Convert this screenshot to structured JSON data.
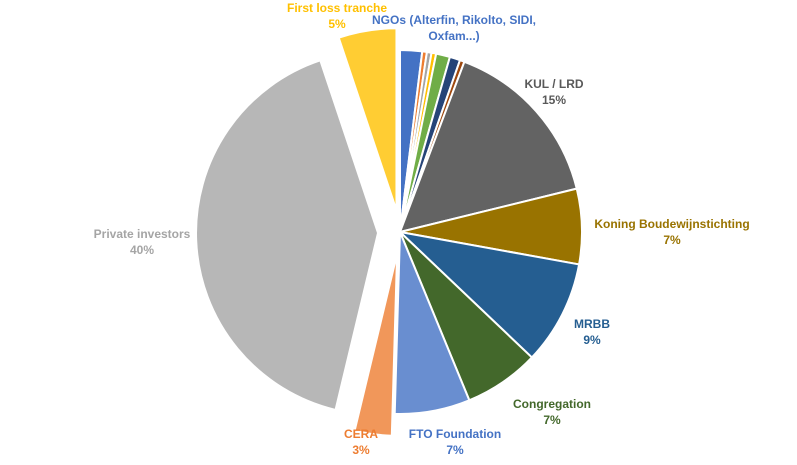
{
  "chart_data": {
    "type": "pie",
    "title": "",
    "start_angle_deg": 0,
    "slices": [
      {
        "name": "NGOs (Alterfin, Rikolto, SIDI, Oxfam...)",
        "value": 1.9,
        "color": "#4472c4",
        "label": [
          "NGOs (Alterfin, Rikolto, SIDI,",
          "Oxfam...)"
        ],
        "percent": "",
        "label_color": "#4472c4"
      },
      {
        "name": "",
        "value": 0.4,
        "color": "#ed7d31"
      },
      {
        "name": "",
        "value": 0.4,
        "color": "#a5a5a5"
      },
      {
        "name": "",
        "value": 0.4,
        "color": "#ffc000"
      },
      {
        "name": "",
        "value": 1.2,
        "color": "#70ad47"
      },
      {
        "name": "",
        "value": 0.9,
        "color": "#264478"
      },
      {
        "name": "",
        "value": 0.4,
        "color": "#9e480e"
      },
      {
        "name": "KUL / LRD",
        "value": 15,
        "color": "#636363",
        "label": [
          "KUL / LRD"
        ],
        "percent": "15%",
        "label_color": "#595959"
      },
      {
        "name": "Koning Boudewijnstichting",
        "value": 6.5,
        "color": "#997300",
        "label": [
          "Koning Boudewijnstichting"
        ],
        "percent": "7%",
        "label_color": "#997300"
      },
      {
        "name": "MRBB",
        "value": 9,
        "color": "#255e91",
        "label": [
          "MRBB"
        ],
        "percent": "9%",
        "label_color": "#255e91"
      },
      {
        "name": "Congregation",
        "value": 6.5,
        "color": "#43682b",
        "label": [
          "Congregation"
        ],
        "percent": "7%",
        "label_color": "#43682b"
      },
      {
        "name": "FTO Foundation",
        "value": 6.5,
        "color": "#698ed0",
        "label": [
          "FTO Foundation"
        ],
        "percent": "7%",
        "label_color": "#4472c4"
      },
      {
        "name": "CERA",
        "value": 3.2,
        "color": "#f1975a",
        "label": [
          "CERA"
        ],
        "percent": "3%",
        "label_color": "#ed7d31",
        "exploded": true
      },
      {
        "name": "Private investors",
        "value": 40,
        "color": "#b7b7b7",
        "label": [
          "Private investors"
        ],
        "percent": "40%",
        "label_color": "#a5a5a5",
        "exploded": true
      },
      {
        "name": "First loss tranche",
        "value": 5,
        "color": "#ffcd33",
        "label": [
          "First loss tranche"
        ],
        "percent": "5%",
        "label_color": "#ffc000",
        "exploded": true
      }
    ]
  }
}
